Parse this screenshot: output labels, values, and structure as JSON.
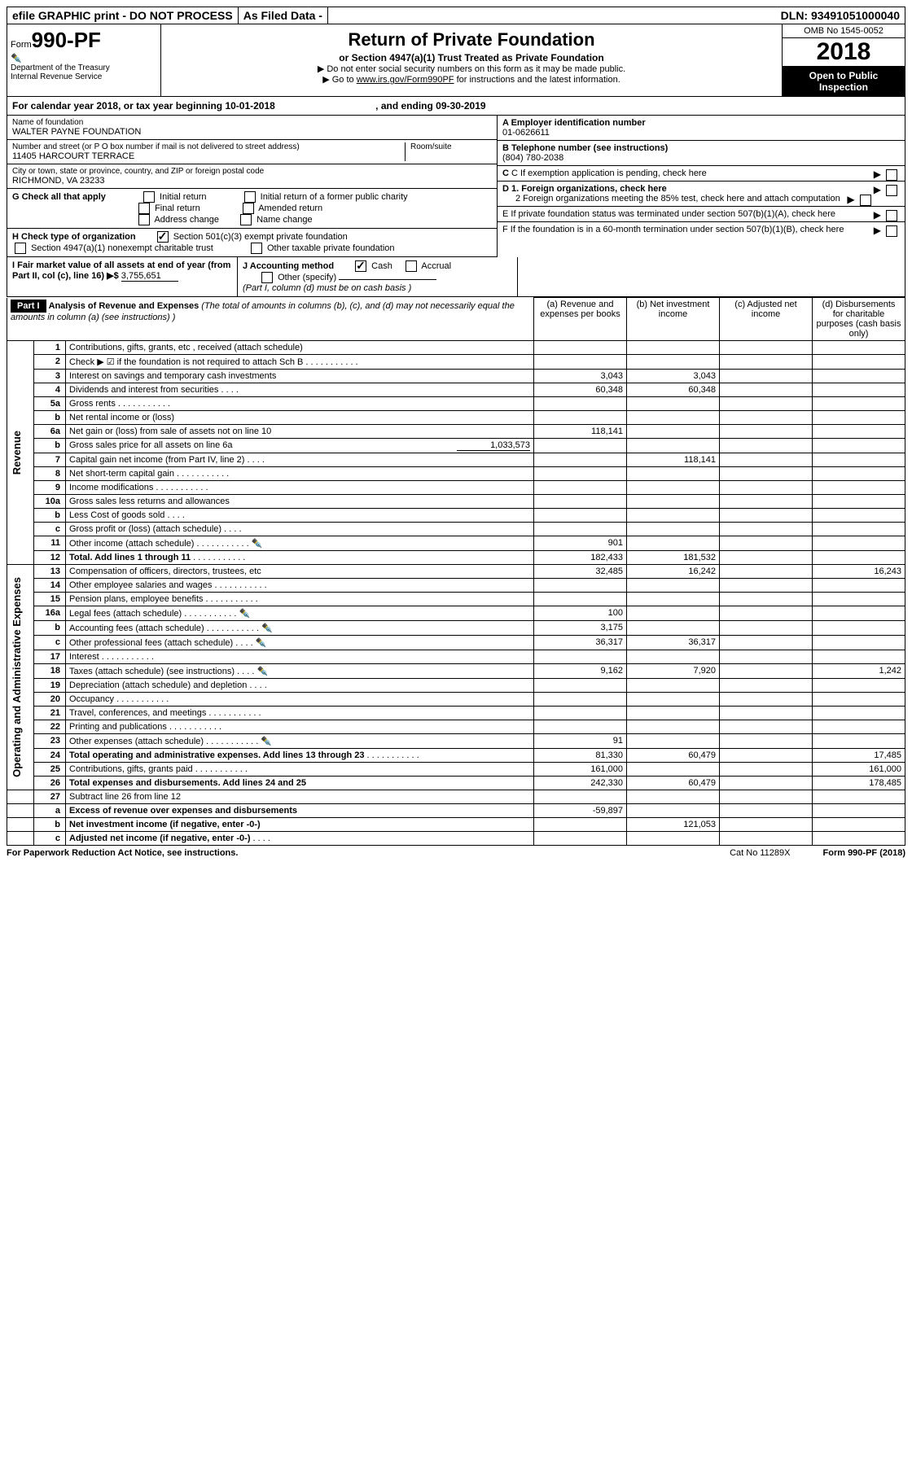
{
  "efile": {
    "left": "efile GRAPHIC print - DO NOT PROCESS",
    "mid": "As Filed Data -",
    "right": "DLN: 93491051000040"
  },
  "header": {
    "form_prefix": "Form",
    "form_num": "990-PF",
    "dept": "Department of the Treasury",
    "irs": "Internal Revenue Service",
    "title": "Return of Private Foundation",
    "subtitle": "or Section 4947(a)(1) Trust Treated as Private Foundation",
    "note1": "▶ Do not enter social security numbers on this form as it may be made public.",
    "note2_a": "▶ Go to ",
    "note2_link": "www.irs.gov/Form990PF",
    "note2_b": " for instructions and the latest information.",
    "omb": "OMB No  1545-0052",
    "year": "2018",
    "open": "Open to Public Inspection"
  },
  "calyear": {
    "text_a": "For calendar year 2018, or tax year beginning 10-01-2018",
    "text_b": ", and ending 09-30-2019"
  },
  "id": {
    "name_label": "Name of foundation",
    "name": "WALTER PAYNE FOUNDATION",
    "addr_label": "Number and street (or P O  box number if mail is not delivered to street address)",
    "addr_room": "Room/suite",
    "addr": "11405 HARCOURT TERRACE",
    "city_label": "City or town, state or province, country, and ZIP or foreign postal code",
    "city": "RICHMOND, VA  23233",
    "ein_label": "A Employer identification number",
    "ein": "01-0626611",
    "phone_label": "B Telephone number (see instructions)",
    "phone": "(804) 780-2038",
    "c": "C If exemption application is pending, check here",
    "d1": "D 1. Foreign organizations, check here",
    "d2": "2  Foreign organizations meeting the 85% test, check here and attach computation",
    "e": "E  If private foundation status was terminated under section 507(b)(1)(A), check here",
    "f": "F  If the foundation is in a 60-month termination under section 507(b)(1)(B), check here",
    "g": "G Check all that apply",
    "g_opts": [
      "Initial return",
      "Initial return of a former public charity",
      "Final return",
      "Amended return",
      "Address change",
      "Name change"
    ],
    "h": "H Check type of organization",
    "h_opts": [
      "Section 501(c)(3) exempt private foundation",
      "Section 4947(a)(1) nonexempt charitable trust",
      "Other taxable private foundation"
    ],
    "i_a": "I Fair market value of all assets at end of year (from Part II, col  (c), line 16) ▶$",
    "i_val": "3,755,651",
    "j": "J Accounting method",
    "j_cash": "Cash",
    "j_accrual": "Accrual",
    "j_other": "Other (specify)",
    "j_note": "(Part I, column (d) must be on cash basis )"
  },
  "part1": {
    "label": "Part I",
    "title": "Analysis of Revenue and Expenses",
    "note": " (The total of amounts in columns (b), (c), and (d) may not necessarily equal the amounts in column (a) (see instructions) )",
    "cols": {
      "a": "(a)    Revenue and expenses per books",
      "b": "(b)    Net investment income",
      "c": "(c)   Adjusted net income",
      "d": "(d)   Disbursements for charitable purposes (cash basis only)"
    },
    "rot_rev": "Revenue",
    "rot_exp": "Operating and Administrative Expenses"
  },
  "rows": [
    {
      "n": "1",
      "d": "Contributions, gifts, grants, etc , received (attach schedule)",
      "a": "",
      "b": "",
      "c": "",
      "e": ""
    },
    {
      "n": "2",
      "d": "Check ▶ ☑ if the foundation is not required to attach Sch  B",
      "dots": true,
      "a": "",
      "b": "",
      "c": "",
      "e": ""
    },
    {
      "n": "3",
      "d": "Interest on savings and temporary cash investments",
      "a": "3,043",
      "b": "3,043",
      "c": "",
      "e": ""
    },
    {
      "n": "4",
      "d": "Dividends and interest from securities",
      "dots": "s",
      "a": "60,348",
      "b": "60,348",
      "c": "",
      "e": ""
    },
    {
      "n": "5a",
      "d": "Gross rents",
      "dots": true,
      "a": "",
      "b": "",
      "c": "",
      "e": ""
    },
    {
      "n": "b",
      "d": "Net rental income or (loss)",
      "a": "",
      "b": "",
      "c": "",
      "e": ""
    },
    {
      "n": "6a",
      "d": "Net gain or (loss) from sale of assets not on line 10",
      "a": "118,141",
      "b": "",
      "c": "",
      "e": ""
    },
    {
      "n": "b",
      "d": "Gross sales price for all assets on line 6a",
      "inline": "1,033,573",
      "a": "",
      "b": "",
      "c": "",
      "e": ""
    },
    {
      "n": "7",
      "d": "Capital gain net income (from Part IV, line 2)",
      "dots": "s",
      "a": "",
      "b": "118,141",
      "c": "",
      "e": ""
    },
    {
      "n": "8",
      "d": "Net short-term capital gain",
      "dots": true,
      "a": "",
      "b": "",
      "c": "",
      "e": ""
    },
    {
      "n": "9",
      "d": "Income modifications",
      "dots": true,
      "a": "",
      "b": "",
      "c": "",
      "e": ""
    },
    {
      "n": "10a",
      "d": "Gross sales less returns and allowances",
      "a": "",
      "b": "",
      "c": "",
      "e": ""
    },
    {
      "n": "b",
      "d": "Less   Cost of goods sold",
      "dots": "s",
      "a": "",
      "b": "",
      "c": "",
      "e": ""
    },
    {
      "n": "c",
      "d": "Gross profit or (loss) (attach schedule)",
      "dots": "s",
      "a": "",
      "b": "",
      "c": "",
      "e": ""
    },
    {
      "n": "11",
      "d": "Other income (attach schedule)",
      "dots": true,
      "icon": true,
      "a": "901",
      "b": "",
      "c": "",
      "e": ""
    },
    {
      "n": "12",
      "d": "Total. Add lines 1 through 11",
      "dots": true,
      "bold": true,
      "a": "182,433",
      "b": "181,532",
      "c": "",
      "e": ""
    }
  ],
  "exp_rows": [
    {
      "n": "13",
      "d": "Compensation of officers, directors, trustees, etc",
      "a": "32,485",
      "b": "16,242",
      "c": "",
      "e": "16,243"
    },
    {
      "n": "14",
      "d": "Other employee salaries and wages",
      "dots": true,
      "a": "",
      "b": "",
      "c": "",
      "e": ""
    },
    {
      "n": "15",
      "d": "Pension plans, employee benefits",
      "dots": true,
      "a": "",
      "b": "",
      "c": "",
      "e": ""
    },
    {
      "n": "16a",
      "d": "Legal fees (attach schedule)",
      "dots": true,
      "icon": true,
      "a": "100",
      "b": "",
      "c": "",
      "e": ""
    },
    {
      "n": "b",
      "d": "Accounting fees (attach schedule)",
      "dots": true,
      "icon": true,
      "a": "3,175",
      "b": "",
      "c": "",
      "e": ""
    },
    {
      "n": "c",
      "d": "Other professional fees (attach schedule)",
      "dots": "s",
      "icon": true,
      "a": "36,317",
      "b": "36,317",
      "c": "",
      "e": ""
    },
    {
      "n": "17",
      "d": "Interest",
      "dots": true,
      "a": "",
      "b": "",
      "c": "",
      "e": ""
    },
    {
      "n": "18",
      "d": "Taxes (attach schedule) (see instructions)",
      "dots": "s",
      "icon": true,
      "a": "9,162",
      "b": "7,920",
      "c": "",
      "e": "1,242"
    },
    {
      "n": "19",
      "d": "Depreciation (attach schedule) and depletion",
      "dots": "s",
      "a": "",
      "b": "",
      "c": "",
      "e": ""
    },
    {
      "n": "20",
      "d": "Occupancy",
      "dots": true,
      "a": "",
      "b": "",
      "c": "",
      "e": ""
    },
    {
      "n": "21",
      "d": "Travel, conferences, and meetings",
      "dots": true,
      "a": "",
      "b": "",
      "c": "",
      "e": ""
    },
    {
      "n": "22",
      "d": "Printing and publications",
      "dots": true,
      "a": "",
      "b": "",
      "c": "",
      "e": ""
    },
    {
      "n": "23",
      "d": "Other expenses (attach schedule)",
      "dots": true,
      "icon": true,
      "a": "91",
      "b": "",
      "c": "",
      "e": ""
    },
    {
      "n": "24",
      "d": "Total operating and administrative expenses. Add lines 13 through 23",
      "dots": true,
      "bold": true,
      "a": "81,330",
      "b": "60,479",
      "c": "",
      "e": "17,485"
    },
    {
      "n": "25",
      "d": "Contributions, gifts, grants paid",
      "dots": true,
      "a": "161,000",
      "b": "",
      "c": "",
      "e": "161,000"
    },
    {
      "n": "26",
      "d": "Total expenses and disbursements. Add lines 24 and 25",
      "bold": true,
      "a": "242,330",
      "b": "60,479",
      "c": "",
      "e": "178,485"
    }
  ],
  "final_rows": [
    {
      "n": "27",
      "d": "Subtract line 26 from line 12"
    },
    {
      "n": "a",
      "d": "Excess of revenue over expenses and disbursements",
      "bold": true,
      "a": "-59,897"
    },
    {
      "n": "b",
      "d": "Net investment income (if negative, enter -0-)",
      "bold": true,
      "b": "121,053"
    },
    {
      "n": "c",
      "d": "Adjusted net income (if negative, enter -0-)",
      "dots": "s",
      "bold": true
    }
  ],
  "footer": {
    "left": "For Paperwork Reduction Act Notice, see instructions.",
    "mid": "Cat  No  11289X",
    "right": "Form 990-PF (2018)"
  }
}
